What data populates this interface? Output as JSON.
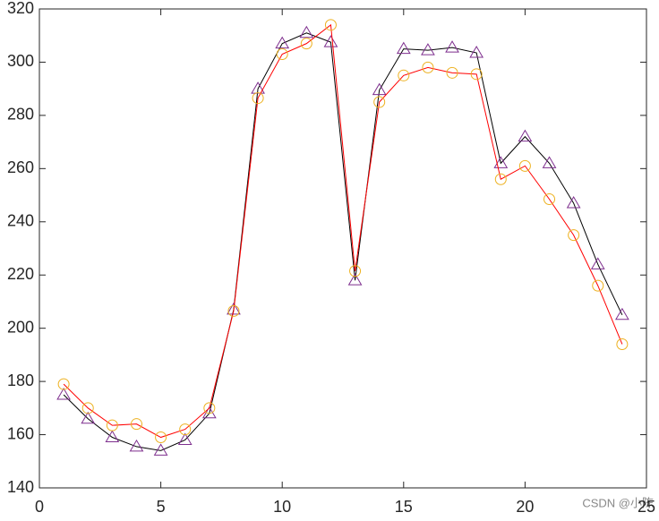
{
  "chart_data": {
    "type": "line",
    "x": [
      1,
      2,
      3,
      4,
      5,
      6,
      7,
      8,
      9,
      10,
      11,
      12,
      13,
      14,
      15,
      16,
      17,
      18,
      19,
      20,
      21,
      22,
      23,
      24
    ],
    "series": [
      {
        "color": "#000000",
        "marker": "triangle",
        "marker_color": "#7e2f8e",
        "values": [
          175,
          166,
          159,
          155.5,
          154,
          158,
          168,
          207,
          290,
          307,
          311,
          307.5,
          218,
          289.5,
          305,
          304.5,
          305.5,
          303.5,
          262,
          272,
          262,
          247,
          224,
          205
        ]
      },
      {
        "color": "#ff0000",
        "marker": "circle",
        "marker_color": "#edb120",
        "values": [
          179,
          170,
          163.5,
          164,
          159,
          162,
          170,
          206.5,
          286.5,
          303,
          307,
          314,
          221.5,
          285,
          295,
          298,
          296,
          295.5,
          256,
          261,
          248.5,
          235,
          216,
          194
        ]
      }
    ],
    "xlim": [
      0,
      25
    ],
    "xticks": [
      0,
      5,
      10,
      15,
      20,
      25
    ],
    "ylim": [
      140,
      320
    ],
    "yticks": [
      140,
      160,
      180,
      200,
      220,
      240,
      260,
      280,
      300,
      320
    ],
    "watermark": "CSDN @小陈"
  }
}
